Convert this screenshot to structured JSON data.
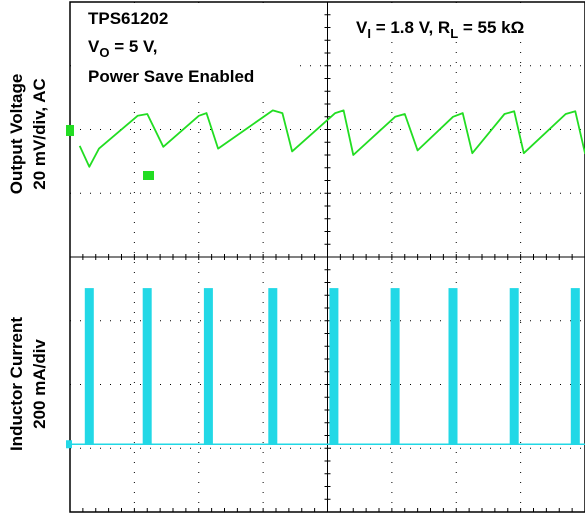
{
  "chart_data": [
    {
      "type": "line",
      "panel": "upper",
      "ylabel": [
        "Output Voltage",
        "20 mV/div, AC"
      ],
      "annotations": {
        "device": "TPS61202",
        "vo_main": "V",
        "vo_sub": "O",
        "vo_rest": " = 5 V,",
        "mode": "Power Save Enabled",
        "cond_vi_main": "V",
        "cond_vi_sub": "I",
        "cond_vi_rest": " = 1.8 V, R",
        "cond_rl_sub": "L",
        "cond_rl_rest": " = 55 kΩ"
      },
      "series": [
        {
          "color": "#22dd22",
          "x_div": [
            0.15,
            0.3,
            0.45,
            1.05,
            1.2,
            1.45,
            2.0,
            2.12,
            2.3,
            3.15,
            3.3,
            3.45,
            4.12,
            4.25,
            4.4,
            5.05,
            5.2,
            5.4,
            5.95,
            6.1,
            6.25,
            6.75,
            6.9,
            7.05,
            7.7,
            7.85,
            8.0,
            8.3
          ],
          "y_div": [
            1.55,
            0.4,
            1.4,
            3.2,
            3.3,
            1.5,
            3.2,
            3.35,
            1.4,
            3.5,
            3.35,
            1.25,
            3.35,
            3.5,
            1.05,
            3.15,
            3.3,
            1.3,
            3.15,
            3.35,
            1.15,
            3.3,
            3.45,
            1.15,
            3.3,
            3.45,
            1.15,
            2.2
          ]
        }
      ]
    },
    {
      "type": "line",
      "panel": "lower",
      "ylabel": [
        "Inductor Current",
        "200 mA/div"
      ],
      "series": [
        {
          "color": "#22d8e6",
          "baseline_div": 0,
          "pulse_centers_div": [
            0.3,
            1.2,
            2.15,
            3.15,
            4.1,
            5.05,
            5.95,
            6.9,
            7.85
          ],
          "pulse_width_div": 0.14,
          "pulse_peak_div": 2.45
        }
      ]
    }
  ],
  "grid": {
    "x_divisions": 8,
    "y_divisions": 8,
    "color": "#000000",
    "center_axes": true
  },
  "markers": {
    "ch1_level_color": "#22dd22",
    "ch2_level_color": "#22d8e6"
  }
}
